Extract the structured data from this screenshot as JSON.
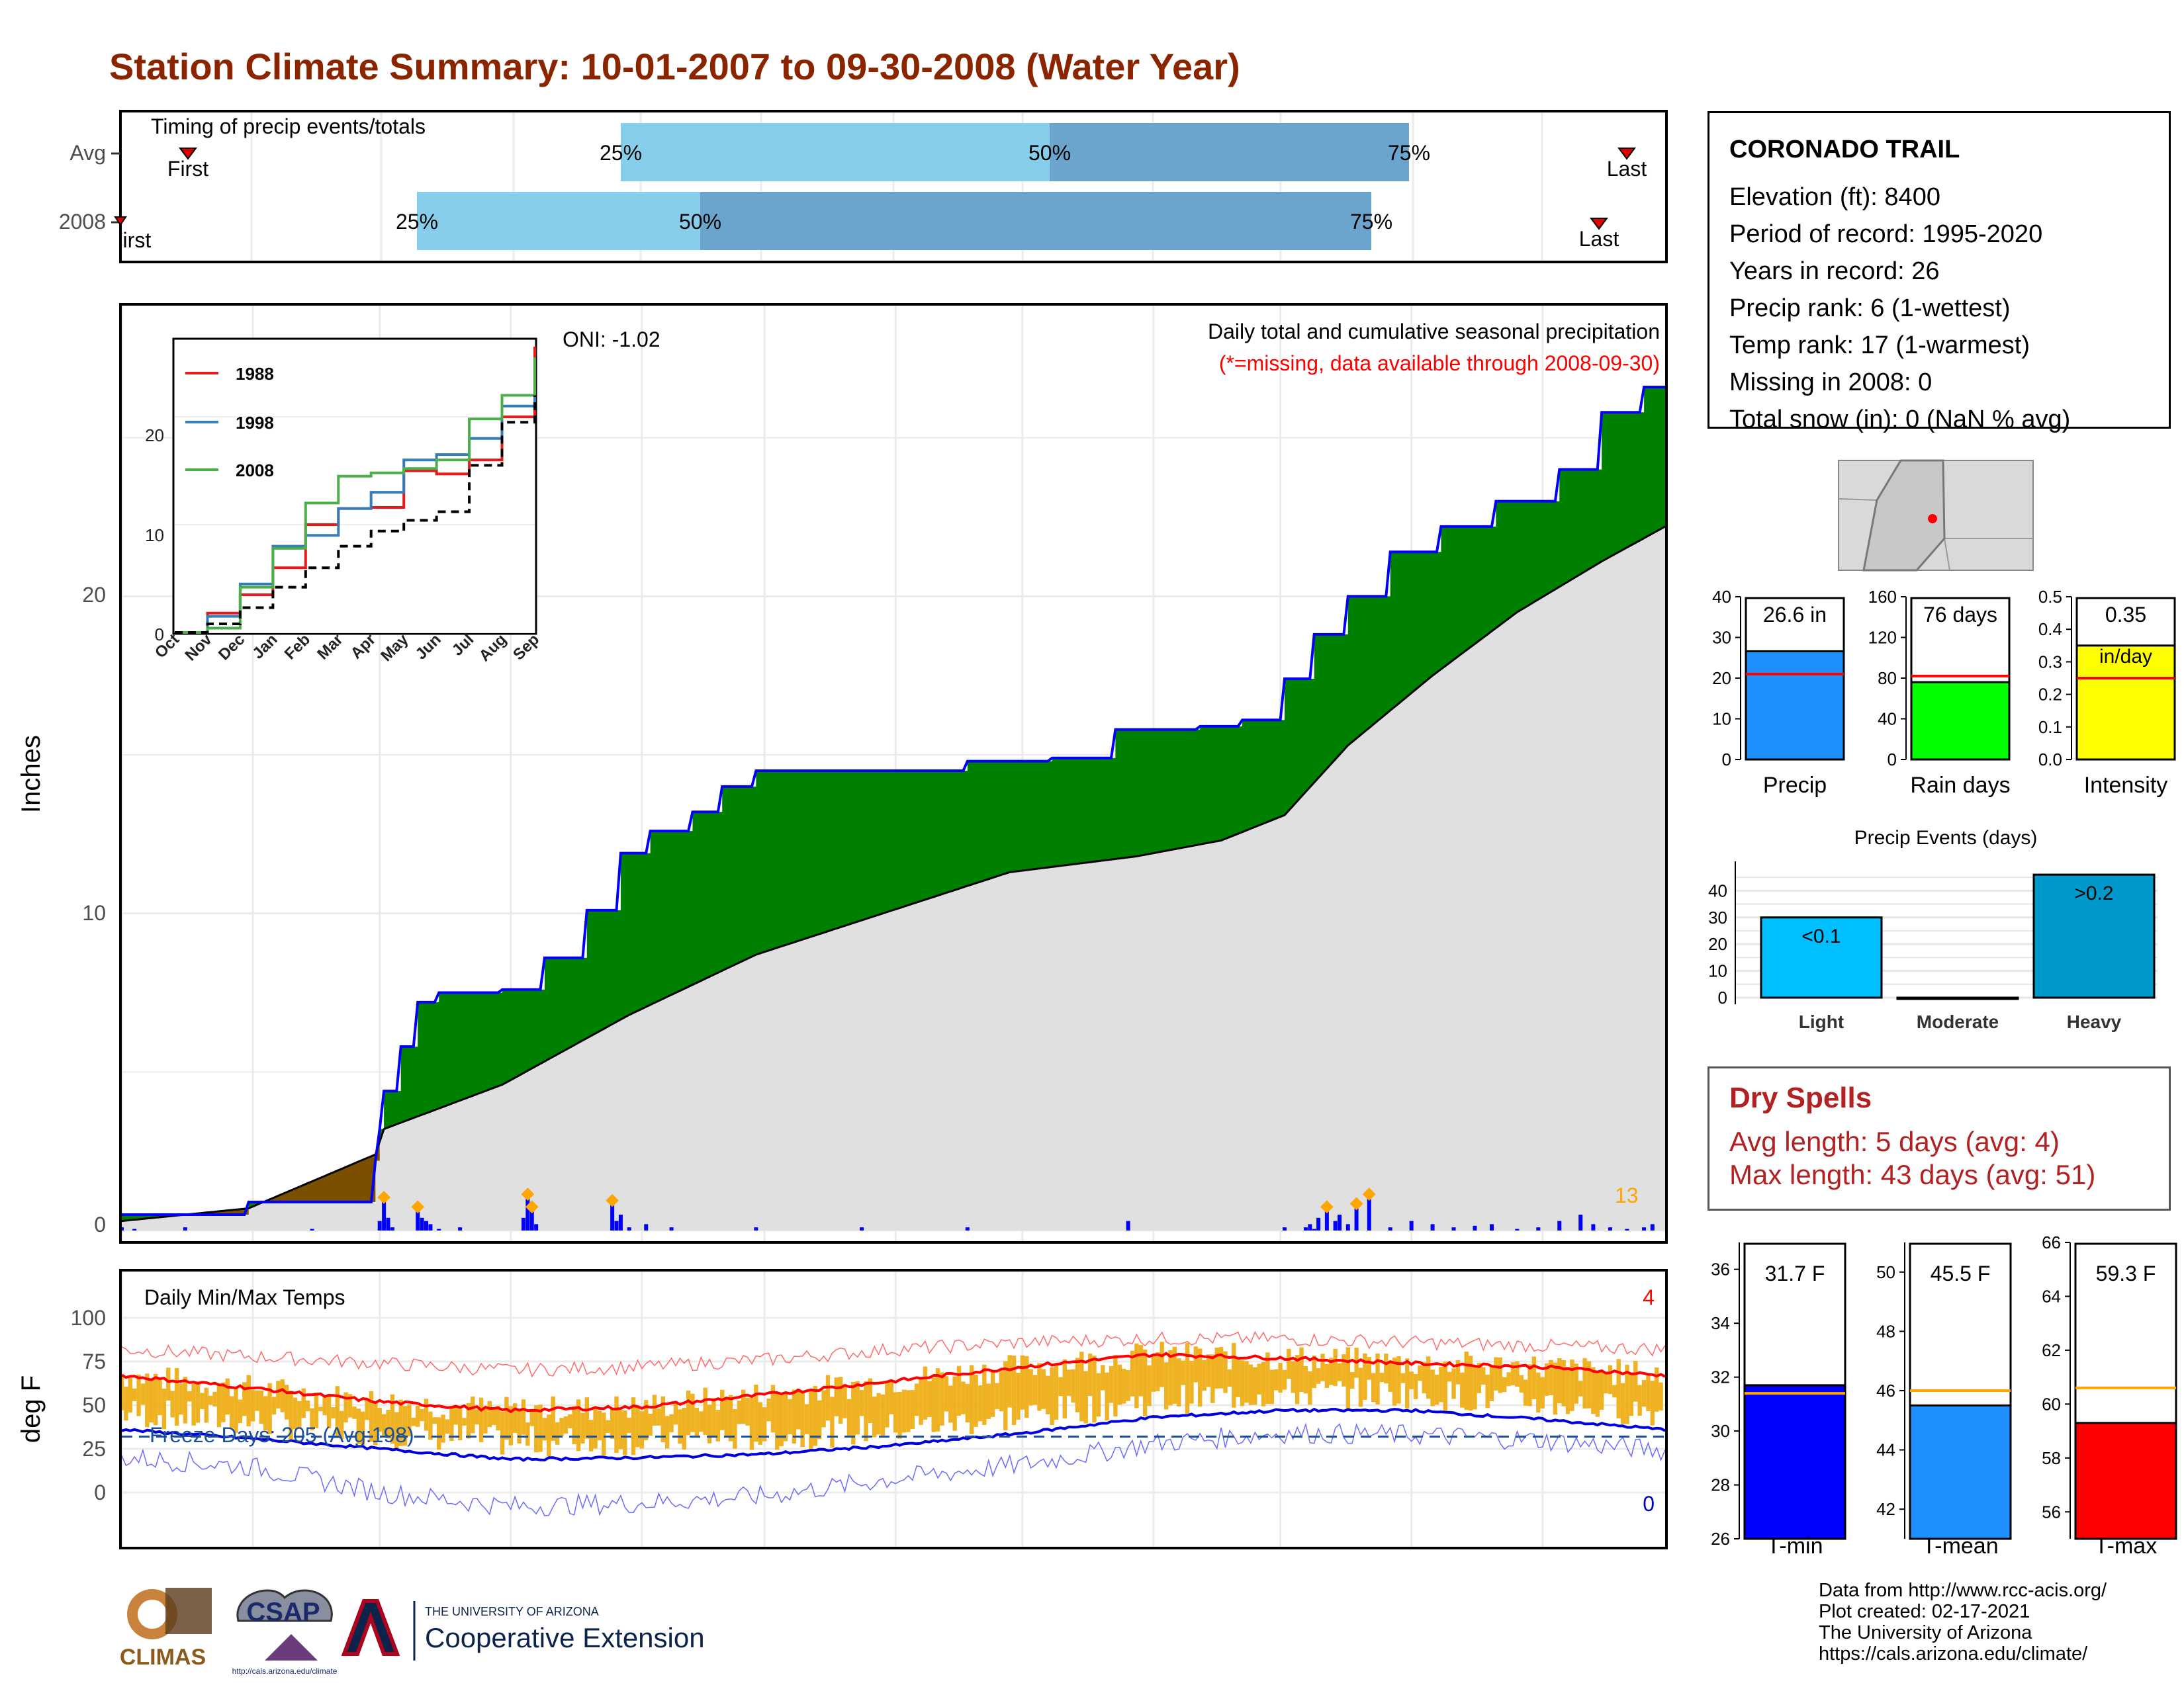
{
  "title": "Station Climate Summary: 10-01-2007 to 09-30-2008 (Water Year)",
  "timing": {
    "title": "Timing of precip events/totals",
    "rows": [
      {
        "label": "Avg",
        "first_label": "First",
        "last_label": "Last",
        "p25": "25%",
        "p50": "50%",
        "p75": "75%"
      },
      {
        "label": "2008",
        "first_label": "First",
        "last_label": "Last",
        "p25": "25%",
        "p50": "50%",
        "p75": "75%"
      }
    ]
  },
  "main": {
    "ylabel": "Inches",
    "yticks": [
      "0",
      "10",
      "20"
    ],
    "caption": "Daily total and cumulative seasonal precipitation",
    "missing_note": "(*=missing, data available through 2008-09-30)",
    "oni": "ONI: -1.02",
    "count_label": "13"
  },
  "inset": {
    "legend": [
      "1988",
      "1998",
      "2008"
    ],
    "yticks": [
      "0",
      "10",
      "20"
    ],
    "months": [
      "Oct",
      "Nov",
      "Dec",
      "Jan",
      "Feb",
      "Mar",
      "Apr",
      "May",
      "Jun",
      "Jul",
      "Aug",
      "Sep"
    ]
  },
  "temps": {
    "title": "Daily Min/Max Temps",
    "ylabel": "deg F",
    "yticks": [
      "0",
      "25",
      "50",
      "75",
      "100"
    ],
    "freeze": "Freeze Days: 205 (Avg:198)",
    "record_high_count": "4",
    "record_low_count": "0"
  },
  "months": [
    "Oct",
    "Nov",
    "Dec",
    "Jan",
    "Feb",
    "Mar",
    "Apr",
    "May",
    "Jun",
    "Jul",
    "Aug",
    "Sep"
  ],
  "station": {
    "name": "CORONADO TRAIL",
    "lines": [
      "Elevation (ft): 8400",
      "Period of record: 1995-2020",
      "Years in record: 26",
      "Precip rank: 6 (1-wettest)",
      "Temp rank: 17 (1-warmest)",
      "Missing in 2008: 0",
      "Total snow (in): 0 (NaN % avg)"
    ]
  },
  "precip_summary": [
    {
      "label": "Precip",
      "value_text": "26.6 in",
      "yticks": [
        "0",
        "10",
        "20",
        "30",
        "40"
      ],
      "color": "#1e90ff"
    },
    {
      "label": "Rain days",
      "value_text": "76 days",
      "yticks": [
        "0",
        "40",
        "80",
        "120",
        "160"
      ],
      "color": "#00ff00"
    },
    {
      "label": "Intensity",
      "value_text": "0.35",
      "value_sub": "in/day",
      "yticks": [
        "0.0",
        "0.1",
        "0.2",
        "0.3",
        "0.4",
        "0.5"
      ],
      "color": "#ffff00"
    }
  ],
  "events": {
    "title": "Precip Events (days)",
    "yticks": [
      "0",
      "10",
      "20",
      "30",
      "40"
    ],
    "categories": [
      "Light",
      "Moderate",
      "Heavy"
    ],
    "bar_labels": [
      "<0.1",
      "",
      ">0.2"
    ]
  },
  "dry_spells": {
    "title": "Dry Spells",
    "avg_line": "Avg length: 5 days (avg: 4)",
    "max_line": "Max length: 43 days (avg: 51)"
  },
  "temp_summary": [
    {
      "label": "T-min",
      "value_text": "31.7 F",
      "yticks": [
        "26",
        "28",
        "30",
        "32",
        "34",
        "36"
      ],
      "color": "#0000ff"
    },
    {
      "label": "T-mean",
      "value_text": "45.5 F",
      "yticks": [
        "42",
        "44",
        "46",
        "48",
        "50"
      ],
      "color": "#1e90ff"
    },
    {
      "label": "T-max",
      "value_text": "59.3 F",
      "yticks": [
        "56",
        "58",
        "60",
        "62",
        "64",
        "66"
      ],
      "color": "#ff0000"
    }
  ],
  "credits": [
    "Data from http://www.rcc-acis.org/",
    "Plot created: 02-17-2021",
    "The University of Arizona",
    "https://cals.arizona.edu/climate/"
  ],
  "logos": {
    "climas": "CLIMAS",
    "csap": "CSAP",
    "csap_url": "http://cals.arizona.edu/climate",
    "ua_small": "THE UNIVERSITY OF ARIZONA",
    "ua_big": "Cooperative Extension"
  },
  "chart_data": [
    {
      "type": "area",
      "name": "cumulative_precip",
      "x_unit": "day of water year",
      "ylim": [
        0,
        26.6
      ],
      "series": [
        {
          "name": "2008",
          "points": [
            [
              0,
              0.5
            ],
            [
              30,
              0.9
            ],
            [
              60,
              2.2
            ],
            [
              61,
              3.2
            ],
            [
              62,
              4.4
            ],
            [
              66,
              5.8
            ],
            [
              70,
              7.2
            ],
            [
              75,
              7.5
            ],
            [
              90,
              7.6
            ],
            [
              100,
              8.6
            ],
            [
              110,
              10.1
            ],
            [
              118,
              11.9
            ],
            [
              125,
              12.6
            ],
            [
              135,
              13.2
            ],
            [
              142,
              14.0
            ],
            [
              150,
              14.5
            ],
            [
              165,
              14.5
            ],
            [
              200,
              14.8
            ],
            [
              220,
              14.9
            ],
            [
              235,
              15.8
            ],
            [
              255,
              15.9
            ],
            [
              265,
              16.1
            ],
            [
              275,
              17.4
            ],
            [
              282,
              18.8
            ],
            [
              290,
              20.0
            ],
            [
              300,
              21.4
            ],
            [
              312,
              22.2
            ],
            [
              325,
              23.0
            ],
            [
              340,
              24.0
            ],
            [
              350,
              25.8
            ],
            [
              360,
              26.6
            ],
            [
              365,
              26.6
            ]
          ]
        },
        {
          "name": "avg",
          "points": [
            [
              0,
              0.3
            ],
            [
              30,
              0.7
            ],
            [
              60,
              2.4
            ],
            [
              62,
              3.2
            ],
            [
              90,
              4.6
            ],
            [
              120,
              6.8
            ],
            [
              150,
              8.7
            ],
            [
              180,
              10.0
            ],
            [
              210,
              11.3
            ],
            [
              240,
              11.8
            ],
            [
              260,
              12.3
            ],
            [
              275,
              13.1
            ],
            [
              290,
              15.3
            ],
            [
              310,
              17.5
            ],
            [
              330,
              19.5
            ],
            [
              350,
              21.1
            ],
            [
              365,
              22.2
            ]
          ]
        }
      ]
    },
    {
      "type": "bar",
      "name": "daily_precip",
      "x_unit": "day of water year",
      "x": [
        0,
        3,
        15,
        45,
        61,
        62,
        63,
        64,
        70,
        71,
        72,
        73,
        75,
        80,
        95,
        96,
        97,
        98,
        116,
        117,
        118,
        120,
        124,
        130,
        150,
        175,
        200,
        238,
        275,
        280,
        281,
        282,
        283,
        285,
        287,
        288,
        290,
        292,
        295,
        300,
        305,
        310,
        315,
        320,
        324,
        330,
        335,
        340,
        345,
        348,
        352,
        356,
        360,
        362
      ],
      "values": [
        0.1,
        0.05,
        0.1,
        0.05,
        0.3,
        0.9,
        0.4,
        0.1,
        0.6,
        0.4,
        0.3,
        0.2,
        0.05,
        0.1,
        0.4,
        1.0,
        0.6,
        0.2,
        0.8,
        0.3,
        0.5,
        0.1,
        0.2,
        0.1,
        0.1,
        0.1,
        0.1,
        0.3,
        0.1,
        0.1,
        0.2,
        0.05,
        0.4,
        0.6,
        0.3,
        0.5,
        0.2,
        0.7,
        1.0,
        0.1,
        0.3,
        0.2,
        0.1,
        0.15,
        0.2,
        0.05,
        0.1,
        0.3,
        0.5,
        0.2,
        0.1,
        0.05,
        0.1,
        0.2
      ]
    },
    {
      "type": "line",
      "name": "inset_cumulative",
      "x": [
        "Oct",
        "Nov",
        "Dec",
        "Jan",
        "Feb",
        "Mar",
        "Apr",
        "May",
        "Jun",
        "Jul",
        "Aug",
        "Sep"
      ],
      "series": [
        {
          "name": "1988",
          "values": [
            0,
            1.8,
            3.5,
            6,
            10,
            11.5,
            11.6,
            15,
            14.7,
            16,
            20,
            26.5
          ]
        },
        {
          "name": "1998",
          "values": [
            0,
            1.5,
            4.5,
            8,
            9,
            11.5,
            13,
            16,
            16.5,
            18,
            21,
            24.5
          ]
        },
        {
          "name": "2008",
          "values": [
            0,
            0.4,
            4.2,
            7.8,
            12,
            14.5,
            14.8,
            15.2,
            16,
            19.8,
            22,
            25.5
          ]
        },
        {
          "name": "avg",
          "values": [
            0,
            0.8,
            2.3,
            4.2,
            6,
            8,
            9.4,
            10.4,
            11.2,
            15.5,
            19.5,
            22
          ]
        }
      ]
    },
    {
      "type": "line",
      "name": "daily_temps",
      "ylim": [
        -20,
        100
      ],
      "x_unit": "day of water year",
      "series": [
        {
          "name": "avg_max",
          "points": [
            [
              0,
              67
            ],
            [
              30,
              60
            ],
            [
              61,
              52
            ],
            [
              92,
              47
            ],
            [
              123,
              49
            ],
            [
              152,
              56
            ],
            [
              183,
              64
            ],
            [
              213,
              72
            ],
            [
              244,
              79
            ],
            [
              274,
              77
            ],
            [
              305,
              74
            ],
            [
              335,
              72
            ],
            [
              365,
              67
            ]
          ]
        },
        {
          "name": "avg_min",
          "points": [
            [
              0,
              36
            ],
            [
              30,
              31
            ],
            [
              61,
              25
            ],
            [
              92,
              19
            ],
            [
              123,
              20
            ],
            [
              152,
              22
            ],
            [
              183,
              27
            ],
            [
              213,
              34
            ],
            [
              244,
              43
            ],
            [
              274,
              47
            ],
            [
              305,
              47
            ],
            [
              335,
              42
            ],
            [
              365,
              36
            ]
          ]
        },
        {
          "name": "record_max",
          "points": [
            [
              0,
              82
            ],
            [
              30,
              78
            ],
            [
              61,
              74
            ],
            [
              92,
              70
            ],
            [
              123,
              72
            ],
            [
              152,
              76
            ],
            [
              183,
              82
            ],
            [
              213,
              86
            ],
            [
              244,
              88
            ],
            [
              274,
              88
            ],
            [
              305,
              86
            ],
            [
              335,
              84
            ],
            [
              365,
              82
            ]
          ]
        },
        {
          "name": "record_min",
          "points": [
            [
              0,
              20
            ],
            [
              30,
              15
            ],
            [
              61,
              0
            ],
            [
              92,
              -8
            ],
            [
              123,
              -6
            ],
            [
              152,
              -2
            ],
            [
              183,
              8
            ],
            [
              213,
              16
            ],
            [
              244,
              28
            ],
            [
              274,
              34
            ],
            [
              305,
              33
            ],
            [
              335,
              30
            ],
            [
              365,
              24
            ]
          ]
        }
      ],
      "freeze_line": 32
    },
    {
      "type": "bar",
      "name": "precip_summary",
      "categories": [
        "Precip",
        "Rain days",
        "Intensity"
      ],
      "values": [
        26.6,
        76,
        0.35
      ],
      "averages": [
        21,
        82,
        0.25
      ],
      "ylims": [
        [
          0,
          40
        ],
        [
          0,
          160
        ],
        [
          0,
          0.5
        ]
      ]
    },
    {
      "type": "bar",
      "name": "precip_events",
      "categories": [
        "Light",
        "Moderate",
        "Heavy"
      ],
      "values": [
        30,
        0,
        46
      ],
      "ylim": [
        0,
        45
      ]
    },
    {
      "type": "bar",
      "name": "temp_summary",
      "categories": [
        "T-min",
        "T-mean",
        "T-max"
      ],
      "values": [
        31.7,
        45.5,
        59.3
      ],
      "averages": [
        31.4,
        46,
        60.6
      ],
      "ylims": [
        [
          26,
          37
        ],
        [
          41,
          51
        ],
        [
          55,
          66
        ]
      ]
    }
  ]
}
